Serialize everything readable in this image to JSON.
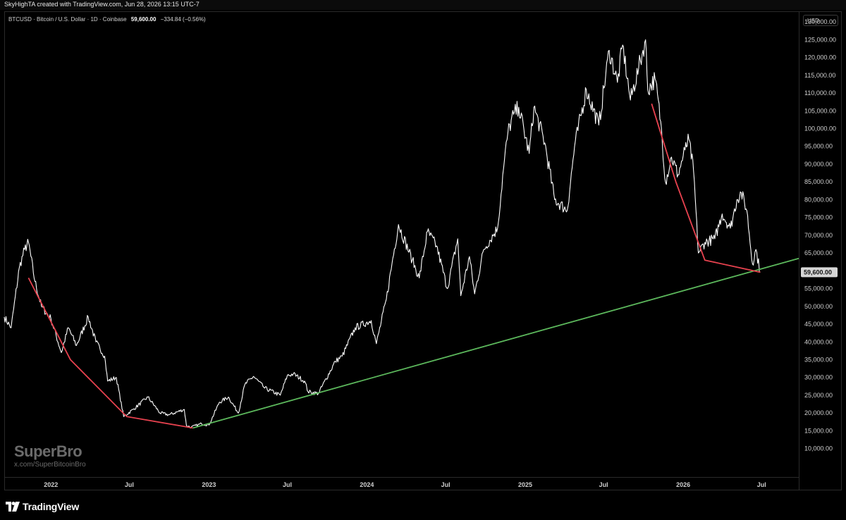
{
  "header": {
    "attribution": "SkyHighTA created with TradingView.com, Jun 28, 2026 13:15 UTC-7"
  },
  "legend": {
    "symbol": "BTCUSD · Bitcoin / U.S. Dollar · 1D · Coinbase",
    "price": "59,600.00",
    "change": "−334.84 (−0.56%)"
  },
  "currency": "USD",
  "watermark": {
    "name": "SuperBro",
    "handle": "x.com/SuperBitcoinBro"
  },
  "footer": {
    "brand": "TradingView"
  },
  "colors": {
    "price_line": "#ffffff",
    "downtrend": "#e8424f",
    "uptrend": "#5cb85c",
    "background": "#000000"
  },
  "chart_data": {
    "type": "line",
    "title": "",
    "xlabel": "",
    "ylabel": "",
    "xlim": [
      "2021-09-15",
      "2026-09-25"
    ],
    "ylim": [
      2000,
      133000
    ],
    "y_ticks": [
      10000,
      15000,
      20000,
      25000,
      30000,
      35000,
      40000,
      45000,
      50000,
      55000,
      60000,
      65000,
      70000,
      75000,
      80000,
      85000,
      90000,
      95000,
      100000,
      105000,
      110000,
      115000,
      120000,
      125000,
      130000
    ],
    "y_tick_labels": [
      "10,000.00",
      "15,000.00",
      "20,000.00",
      "25,000.00",
      "30,000.00",
      "35,000.00",
      "40,000.00",
      "45,000.00",
      "50,000.00",
      "55,000.00",
      "60,000.00",
      "65,000.00",
      "70,000.00",
      "75,000.00",
      "80,000.00",
      "85,000.00",
      "90,000.00",
      "95,000.00",
      "100,000.00",
      "105,000.00",
      "110,000.00",
      "115,000.00",
      "120,000.00",
      "125,000.00",
      "130,000.00"
    ],
    "x_ticks": [
      {
        "date": "2022-01-01",
        "label": "2022"
      },
      {
        "date": "2022-07-01",
        "label": "Jul"
      },
      {
        "date": "2023-01-01",
        "label": "2023"
      },
      {
        "date": "2023-07-01",
        "label": "Jul"
      },
      {
        "date": "2024-01-01",
        "label": "2024"
      },
      {
        "date": "2024-07-01",
        "label": "Jul"
      },
      {
        "date": "2025-01-01",
        "label": "2025"
      },
      {
        "date": "2025-07-01",
        "label": "Jul"
      },
      {
        "date": "2026-01-01",
        "label": "2026"
      },
      {
        "date": "2026-07-01",
        "label": "Jul"
      }
    ],
    "last_price_label": "59,600.00",
    "last_price": 59600,
    "series": [
      {
        "name": "BTCUSD",
        "x": [
          "2021-09-15",
          "2021-10-01",
          "2021-10-20",
          "2021-11-01",
          "2021-11-10",
          "2021-11-25",
          "2021-12-10",
          "2022-01-01",
          "2022-01-25",
          "2022-02-10",
          "2022-03-01",
          "2022-03-28",
          "2022-04-15",
          "2022-05-05",
          "2022-05-12",
          "2022-06-01",
          "2022-06-18",
          "2022-07-10",
          "2022-08-13",
          "2022-09-10",
          "2022-10-01",
          "2022-11-05",
          "2022-11-10",
          "2022-11-21",
          "2022-12-15",
          "2023-01-01",
          "2023-01-25",
          "2023-02-15",
          "2023-03-10",
          "2023-03-25",
          "2023-04-14",
          "2023-05-10",
          "2023-06-15",
          "2023-07-01",
          "2023-07-15",
          "2023-08-10",
          "2023-08-18",
          "2023-09-11",
          "2023-10-20",
          "2023-11-05",
          "2023-12-05",
          "2024-01-11",
          "2024-01-23",
          "2024-02-15",
          "2024-02-28",
          "2024-03-14",
          "2024-04-15",
          "2024-05-01",
          "2024-05-20",
          "2024-06-10",
          "2024-07-05",
          "2024-07-29",
          "2024-08-05",
          "2024-08-25",
          "2024-09-06",
          "2024-09-27",
          "2024-10-29",
          "2024-11-12",
          "2024-11-22",
          "2024-12-05",
          "2024-12-17",
          "2025-01-10",
          "2025-01-21",
          "2025-02-15",
          "2025-03-10",
          "2025-04-08",
          "2025-04-25",
          "2025-05-22",
          "2025-06-20",
          "2025-07-14",
          "2025-08-02",
          "2025-08-14",
          "2025-09-01",
          "2025-09-20",
          "2025-10-06",
          "2025-10-11",
          "2025-10-28",
          "2025-11-10",
          "2025-11-21",
          "2025-12-05",
          "2025-12-20",
          "2026-01-05",
          "2026-01-14",
          "2026-01-25",
          "2026-02-05",
          "2026-02-20",
          "2026-03-15",
          "2026-04-01",
          "2026-04-20",
          "2026-05-05",
          "2026-05-15",
          "2026-05-28",
          "2026-06-10",
          "2026-06-18",
          "2026-06-28"
        ],
        "y": [
          47000,
          44000,
          61000,
          66000,
          68000,
          57000,
          50000,
          46500,
          37000,
          44000,
          39000,
          47000,
          40000,
          36000,
          29000,
          30000,
          19000,
          21000,
          24500,
          20000,
          19500,
          21000,
          16500,
          16000,
          17000,
          16600,
          23000,
          24500,
          20000,
          28000,
          30300,
          27000,
          25000,
          30500,
          31000,
          29000,
          26000,
          25500,
          34500,
          36000,
          44000,
          46000,
          39500,
          52000,
          62000,
          73000,
          63000,
          58000,
          71000,
          67000,
          55000,
          69000,
          53000,
          64000,
          53500,
          66000,
          72000,
          89000,
          99000,
          104000,
          106000,
          93000,
          106000,
          96000,
          80000,
          77000,
          95000,
          111000,
          101000,
          122000,
          113000,
          123500,
          108000,
          117000,
          125000,
          111000,
          114000,
          102000,
          85000,
          92000,
          87000,
          94000,
          97000,
          88000,
          65000,
          68000,
          69000,
          76000,
          72000,
          80000,
          82000,
          77000,
          62000,
          66000,
          59600
        ]
      }
    ],
    "trendlines": [
      {
        "name": "downtrend-2021-2022",
        "color": "#e8424f",
        "points": [
          {
            "x": "2021-11-10",
            "y": 58000
          },
          {
            "x": "2022-02-15",
            "y": 35000
          },
          {
            "x": "2022-06-25",
            "y": 19000
          },
          {
            "x": "2022-11-25",
            "y": 15800
          }
        ]
      },
      {
        "name": "uptrend-support",
        "color": "#5cb85c",
        "points": [
          {
            "x": "2022-11-25",
            "y": 15800
          },
          {
            "x": "2026-09-25",
            "y": 63500
          }
        ]
      },
      {
        "name": "downtrend-2025-2026",
        "color": "#e8424f",
        "points": [
          {
            "x": "2025-10-20",
            "y": 107000
          },
          {
            "x": "2025-12-15",
            "y": 85000
          },
          {
            "x": "2026-02-20",
            "y": 63000
          },
          {
            "x": "2026-06-28",
            "y": 59600
          }
        ]
      }
    ]
  }
}
